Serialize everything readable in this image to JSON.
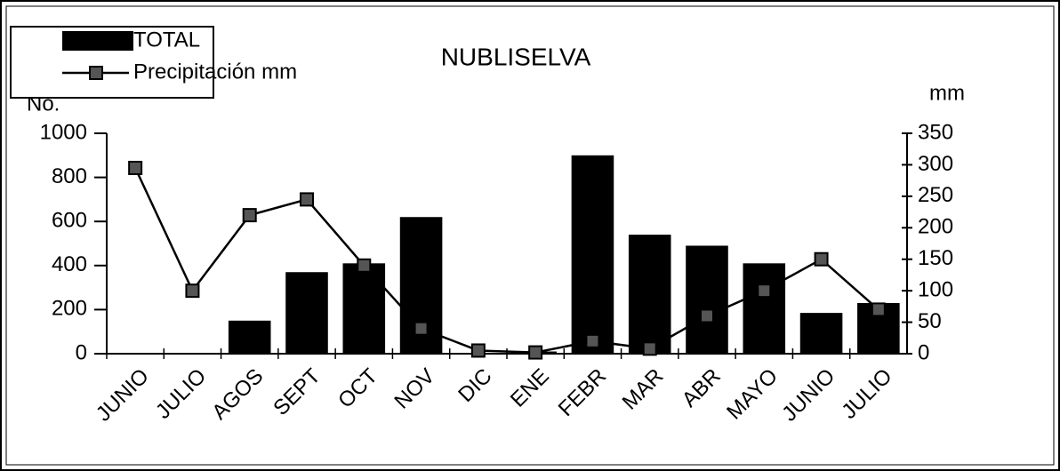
{
  "chart_data": {
    "type": "bar-line",
    "title": "NUBLISELVA",
    "ylabel": "No.",
    "y2label": "mm",
    "categories": [
      "JUNIO",
      "JULIO",
      "AGOS",
      "SEPT",
      "OCT",
      "NOV",
      "DIC",
      "ENE",
      "FEBR",
      "MAR",
      "ABR",
      "MAYO",
      "JUNIO",
      "JULIO"
    ],
    "series": [
      {
        "name": "TOTAL",
        "type": "bar",
        "color": "#000000",
        "values": [
          0,
          0,
          150,
          370,
          410,
          620,
          0,
          10,
          900,
          540,
          490,
          410,
          185,
          230
        ]
      },
      {
        "name": "Precipitación mm",
        "type": "line",
        "axis": "y2",
        "color": "#000000",
        "values": [
          295,
          100,
          220,
          245,
          140,
          40,
          5,
          2,
          20,
          8,
          60,
          100,
          150,
          70
        ]
      }
    ],
    "ylim": [
      0,
      1000
    ],
    "yticks": [
      0,
      200,
      400,
      600,
      800,
      1000
    ],
    "y2lim": [
      0,
      350
    ],
    "y2ticks": [
      0,
      50,
      100,
      150,
      200,
      250,
      300,
      350
    ],
    "legend": "top-left"
  }
}
